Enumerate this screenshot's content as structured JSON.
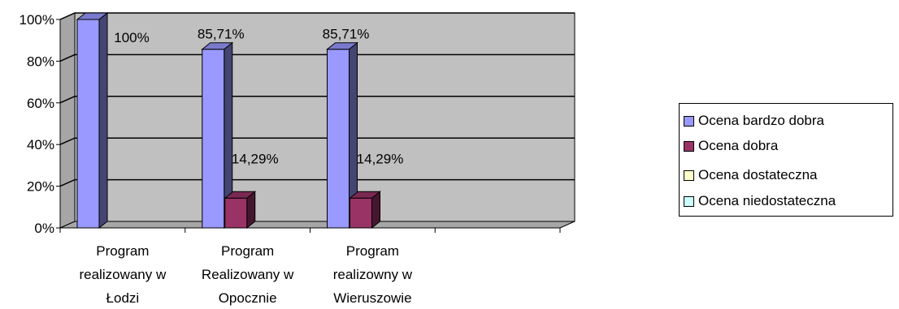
{
  "chart_data": {
    "type": "bar",
    "categories": [
      [
        "Program",
        "realizowany w",
        "Łodzi"
      ],
      [
        "Program",
        "Realizowany w",
        "Opocznie"
      ],
      [
        "Program",
        "realizowny w",
        "Wieruszowie"
      ],
      [
        "",
        "",
        ""
      ]
    ],
    "series": [
      {
        "name": "Ocena bardzo dobra",
        "values": [
          100,
          85.71,
          85.71,
          null
        ],
        "labels": [
          "100%",
          "85,71%",
          "85,71%",
          ""
        ],
        "color": "#9999ff"
      },
      {
        "name": "Ocena dobra",
        "values": [
          0,
          14.29,
          14.29,
          null
        ],
        "labels": [
          "",
          "14,29%",
          "14,29%",
          ""
        ],
        "color": "#993366"
      },
      {
        "name": "Ocena dostateczna",
        "values": [
          null,
          null,
          null,
          null
        ],
        "labels": [
          "",
          "",
          "",
          ""
        ],
        "color": "#ffffcc"
      },
      {
        "name": "Ocena niedostateczna",
        "values": [
          null,
          null,
          null,
          null
        ],
        "labels": [
          "",
          "",
          "",
          ""
        ],
        "color": "#ccffff"
      }
    ],
    "yticks": [
      "0%",
      "20%",
      "40%",
      "60%",
      "80%",
      "100%"
    ],
    "ylim": [
      0,
      100
    ],
    "grid": true,
    "legend": "right",
    "background": "#c0c0c0"
  }
}
